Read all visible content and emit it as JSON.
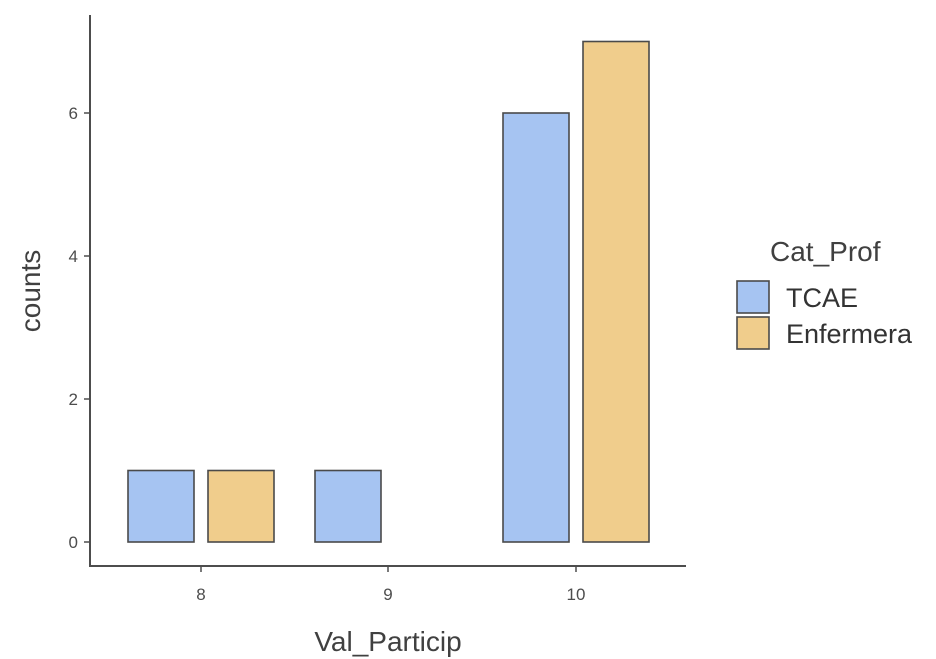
{
  "chart_data": {
    "type": "bar",
    "title": "",
    "xlabel": "Val_Particip",
    "ylabel": "counts",
    "categories": [
      "8",
      "9",
      "10"
    ],
    "ylim": [
      0,
      7
    ],
    "yticks": [
      "0",
      "2",
      "4",
      "6"
    ],
    "grid": false,
    "legend": {
      "title": "Cat_Prof",
      "position": "right"
    },
    "series": [
      {
        "name": "TCAE",
        "color": "#a6c4f2",
        "values": [
          1,
          1,
          6
        ]
      },
      {
        "name": "Enfermera",
        "color": "#f0cd8c",
        "values": [
          1,
          0,
          7
        ]
      }
    ]
  }
}
